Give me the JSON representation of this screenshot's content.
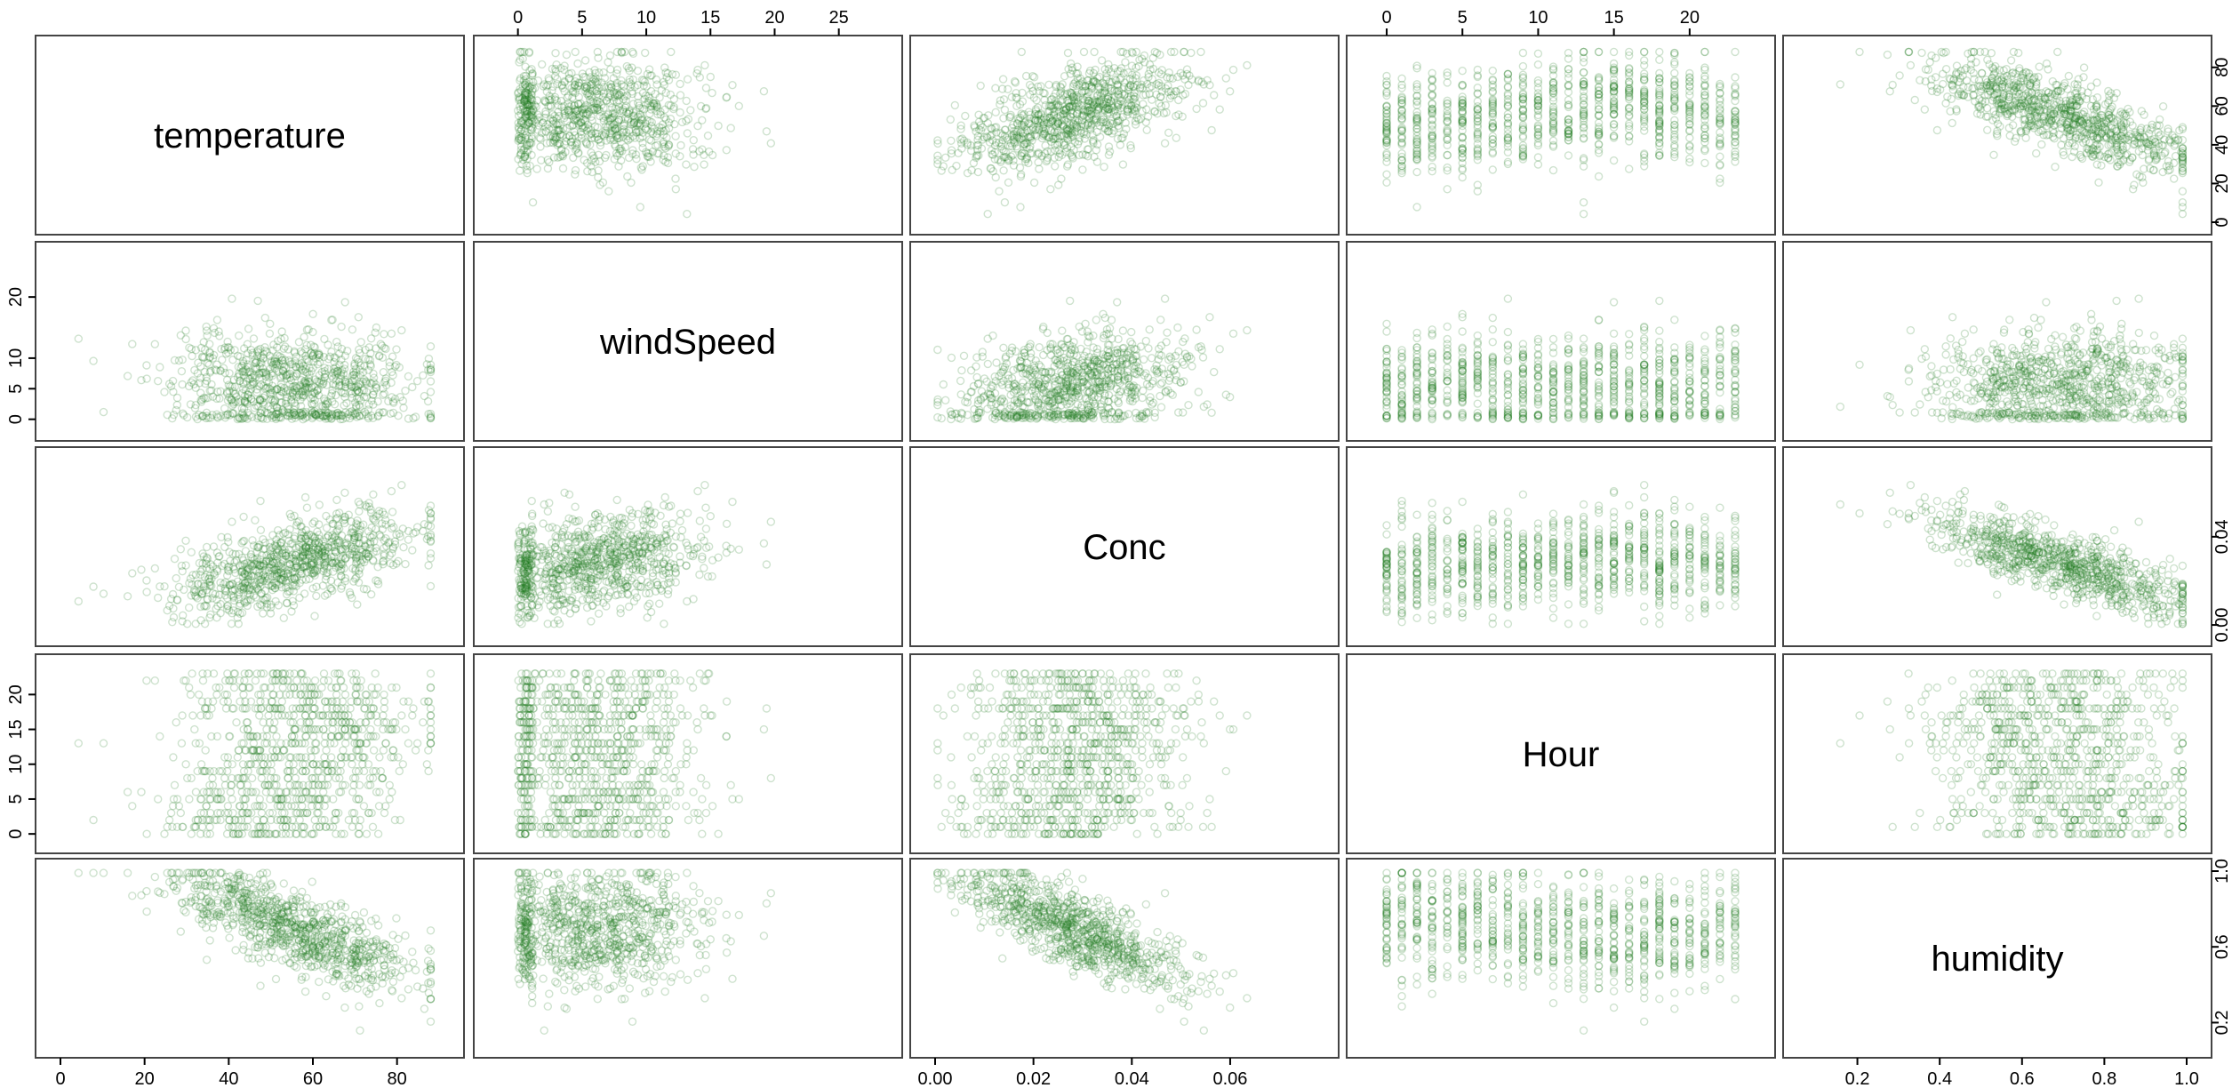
{
  "chart_data": {
    "type": "scatter",
    "title": "",
    "variables": [
      {
        "name": "temperature",
        "range": [
          0,
          90
        ],
        "ticks": [
          0,
          20,
          40,
          60,
          80
        ],
        "tick_labels": [
          "0",
          "20",
          "40",
          "60",
          "80"
        ]
      },
      {
        "name": "windSpeed",
        "range": [
          -1.5,
          28
        ],
        "ticks": [
          0,
          5,
          10,
          15,
          20,
          25
        ],
        "tick_labels": [
          "0",
          "5",
          "10",
          "15",
          "20",
          "25"
        ]
      },
      {
        "name": "Conc",
        "range": [
          0,
          0.077
        ],
        "ticks": [
          0.0,
          0.02,
          0.04,
          0.06
        ],
        "tick_labels": [
          "0.00",
          "0.02",
          "0.04",
          "0.06"
        ]
      },
      {
        "name": "Hour",
        "range": [
          -1,
          24
        ],
        "ticks": [
          0,
          5,
          10,
          15,
          20
        ],
        "tick_labels": [
          "0",
          "5",
          "10",
          "15",
          "20"
        ]
      },
      {
        "name": "humidity",
        "range": [
          0.08,
          1.0
        ],
        "ticks": [
          0.2,
          0.4,
          0.6,
          0.8,
          1.0
        ],
        "tick_labels": [
          "0.2",
          "0.4",
          "0.6",
          "0.8",
          "1.0"
        ]
      }
    ],
    "axis_ticks_vertical": {
      "temperature": {
        "range": [
          0,
          90
        ],
        "ticks": [
          0,
          20,
          40,
          60,
          80
        ],
        "tick_labels": [
          "0",
          "20",
          "40",
          "60",
          "80"
        ]
      },
      "windSpeed": {
        "range": [
          -1.5,
          27
        ],
        "ticks": [
          0,
          5,
          10,
          20
        ],
        "tick_labels": [
          "0",
          "5",
          "10",
          "20"
        ]
      },
      "Conc": {
        "range": [
          -0.004,
          0.075
        ],
        "ticks": [
          0.0,
          0.04
        ],
        "tick_labels": [
          "0.00",
          "0.04"
        ]
      },
      "Hour": {
        "range": [
          -1,
          24
        ],
        "ticks": [
          0,
          5,
          10,
          15,
          20
        ],
        "tick_labels": [
          "0",
          "5",
          "10",
          "15",
          "20"
        ]
      },
      "humidity": {
        "range": [
          0.08,
          1.0
        ],
        "ticks": [
          0.2,
          0.6,
          1.0
        ],
        "tick_labels": [
          "0.2",
          "0.6",
          "1.0"
        ]
      }
    },
    "axis_placement": {
      "top": [
        1,
        3
      ],
      "bottom": [
        0,
        2,
        4
      ],
      "left": [
        1,
        3
      ],
      "right": [
        0,
        2,
        4
      ]
    },
    "point_color": "#1e7b1e",
    "point_opacity": 0.1,
    "grid": false,
    "legend": "none",
    "summary_relations": {
      "temperature_vs_Conc": "positive",
      "temperature_vs_humidity": "negative",
      "Conc_vs_humidity": "negative",
      "windSpeed_vs_Conc": "positive",
      "Hour": "integer values 0-23 (discrete columns / rows)"
    }
  }
}
